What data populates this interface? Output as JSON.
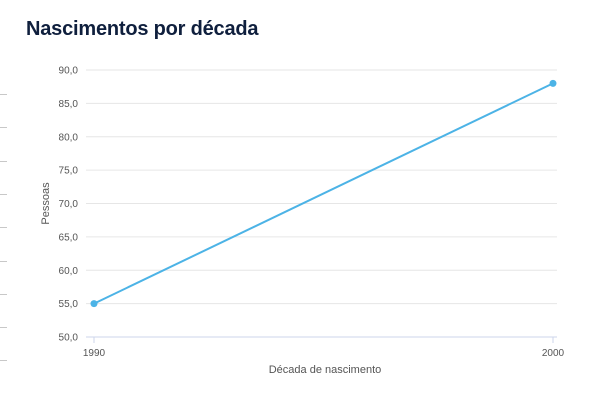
{
  "page": {
    "title": "Nascimentos por década"
  },
  "chart_data": {
    "type": "line",
    "title": "Nascimentos por década",
    "xlabel": "Década de nascimento",
    "ylabel": "Pessoas",
    "x": [
      "1990",
      "2000"
    ],
    "series": [
      {
        "values": [
          55.0,
          88.0
        ],
        "color": "#4cb3e6"
      }
    ],
    "ylim": [
      50,
      90
    ],
    "yticks": [
      "50,0",
      "55,0",
      "60,0",
      "65,0",
      "70,0",
      "75,0",
      "80,0",
      "85,0",
      "90,0"
    ],
    "grid": true,
    "legend": "none"
  }
}
